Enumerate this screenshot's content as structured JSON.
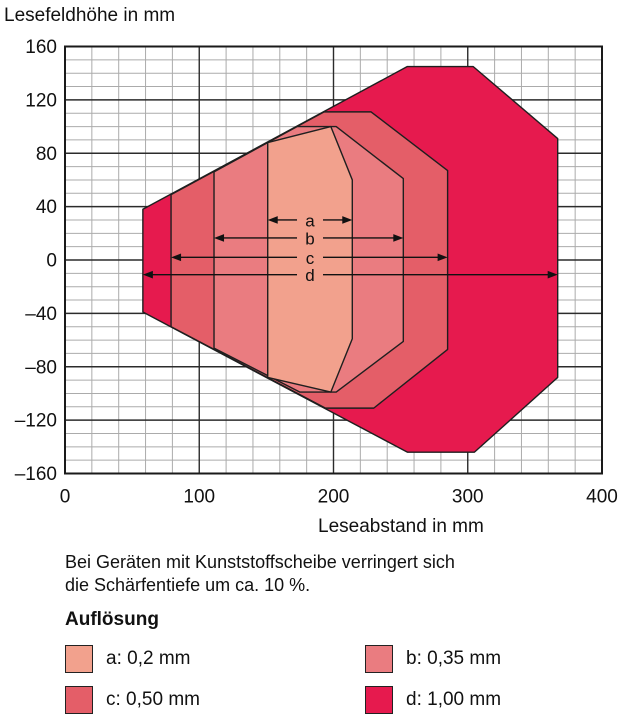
{
  "chart_data": {
    "type": "area",
    "title": "Lesefeldhöhe in mm",
    "xlabel": "Leseabstand in mm",
    "ylabel": "Lesefeldhöhe in mm",
    "xlim": [
      0,
      400
    ],
    "ylim": [
      -160,
      160
    ],
    "grid": true,
    "x_major_ticks": [
      0,
      100,
      200,
      300,
      400
    ],
    "x_tick_labels": [
      "0",
      "100",
      "200",
      "300",
      "400"
    ],
    "y_major_ticks": [
      160,
      120,
      80,
      40,
      0,
      -40,
      -80,
      -120,
      -160
    ],
    "y_tick_labels": [
      "160",
      "120",
      "80",
      "40",
      "0",
      "–40",
      "–80",
      "–120",
      "–160"
    ],
    "x_minor_step": 20,
    "y_minor_step": 10,
    "arrow_label_x": 182.5,
    "series": [
      {
        "id": "d",
        "resolution": "1,00 mm",
        "color": "#E61A4E",
        "depth_of_field_mm": [
          58,
          367
        ],
        "vertices": [
          [
            58,
            38
          ],
          [
            255,
            145
          ],
          [
            304,
            145
          ],
          [
            367,
            91
          ],
          [
            367,
            -88
          ],
          [
            305,
            -144
          ],
          [
            255,
            -144
          ],
          [
            58,
            -39
          ]
        ]
      },
      {
        "id": "c",
        "resolution": "0,50 mm",
        "color": "#E45E68",
        "depth_of_field_mm": [
          79,
          285
        ],
        "vertices": [
          [
            79,
            49
          ],
          [
            193,
            111
          ],
          [
            228,
            111
          ],
          [
            285,
            67
          ],
          [
            285,
            -67
          ],
          [
            230,
            -111
          ],
          [
            194,
            -111
          ],
          [
            79,
            -50
          ]
        ]
      },
      {
        "id": "b",
        "resolution": "0,35 mm",
        "color": "#EA7C80",
        "depth_of_field_mm": [
          111,
          252
        ],
        "vertices": [
          [
            111,
            66
          ],
          [
            173,
            100
          ],
          [
            202,
            100
          ],
          [
            252,
            61
          ],
          [
            252,
            -61
          ],
          [
            202,
            -99
          ],
          [
            175,
            -99
          ],
          [
            111,
            -66
          ]
        ]
      },
      {
        "id": "a",
        "resolution": "0,2 mm",
        "color": "#F2A18D",
        "depth_of_field_mm": [
          151,
          214
        ],
        "vertices": [
          [
            151,
            88
          ],
          [
            198,
            100
          ],
          [
            214,
            60
          ],
          [
            214,
            -59
          ],
          [
            198,
            -99
          ],
          [
            151,
            -88
          ]
        ]
      }
    ],
    "range_arrows": [
      {
        "id": "a",
        "y": 30,
        "x1": 151,
        "x2": 214
      },
      {
        "id": "b",
        "y": 16.5,
        "x1": 111,
        "x2": 252
      },
      {
        "id": "c",
        "y": 2,
        "x1": 79,
        "x2": 285
      },
      {
        "id": "d",
        "y": -11,
        "x1": 58,
        "x2": 367
      }
    ]
  },
  "note": {
    "line1": "Bei Geräten mit Kunststoffscheibe verringert sich",
    "line2": "die Schärfentiefe um ca. 10 %."
  },
  "legend": {
    "heading": "Auflösung",
    "items": [
      {
        "id": "a",
        "label": "a: 0,2 mm"
      },
      {
        "id": "b",
        "label": "b: 0,35 mm"
      },
      {
        "id": "c",
        "label": "c: 0,50 mm"
      },
      {
        "id": "d",
        "label": "d: 1,00 mm"
      }
    ]
  }
}
